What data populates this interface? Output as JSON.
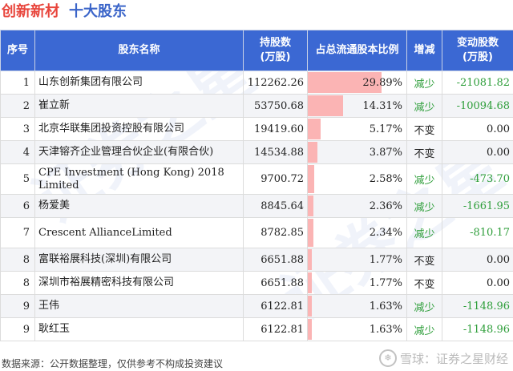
{
  "title": {
    "main": "创新新材",
    "sub": "十大股东"
  },
  "headers": {
    "no": "序号",
    "name": "股东名称",
    "shares": "持股数\n(万股)",
    "ratio": "占总流通股本比例",
    "change": "增减",
    "delta": "变动股数\n(万股)"
  },
  "rows": [
    {
      "no": "1",
      "name": "山东创新集团有限公司",
      "shares": "112262.26",
      "ratio": "29.89%",
      "ratio_value": 29.89,
      "change": "减少",
      "delta": "-21081.82"
    },
    {
      "no": "2",
      "name": "崔立新",
      "shares": "53750.68",
      "ratio": "14.31%",
      "ratio_value": 14.31,
      "change": "减少",
      "delta": "-10094.68"
    },
    {
      "no": "3",
      "name": "北京华联集团投资控股有限公司",
      "shares": "19419.60",
      "ratio": "5.17%",
      "ratio_value": 5.17,
      "change": "不变",
      "delta": "0.00"
    },
    {
      "no": "4",
      "name": "天津镕齐企业管理合伙企业(有限合伙)",
      "shares": "14534.88",
      "ratio": "3.87%",
      "ratio_value": 3.87,
      "change": "不变",
      "delta": "0.00"
    },
    {
      "no": "5",
      "name": "CPE Investment (Hong Kong) 2018 Limited",
      "shares": "9700.72",
      "ratio": "2.58%",
      "ratio_value": 2.58,
      "change": "减少",
      "delta": "-473.70"
    },
    {
      "no": "6",
      "name": "杨爱美",
      "shares": "8845.64",
      "ratio": "2.36%",
      "ratio_value": 2.36,
      "change": "减少",
      "delta": "-1661.95"
    },
    {
      "no": "7",
      "name": "Crescent AllianceLimited",
      "shares": "8782.85",
      "ratio": "2.34%",
      "ratio_value": 2.34,
      "change": "减少",
      "delta": "-810.17"
    },
    {
      "no": "8",
      "name": "富联裕展科技(深圳)有限公司",
      "shares": "6651.88",
      "ratio": "1.77%",
      "ratio_value": 1.77,
      "change": "不变",
      "delta": "0.00"
    },
    {
      "no": "8",
      "name": "深圳市裕展精密科技有限公司",
      "shares": "6651.88",
      "ratio": "1.77%",
      "ratio_value": 1.77,
      "change": "不变",
      "delta": "0.00"
    },
    {
      "no": "9",
      "name": "王伟",
      "shares": "6122.81",
      "ratio": "1.63%",
      "ratio_value": 1.63,
      "change": "减少",
      "delta": "-1148.96"
    },
    {
      "no": "9",
      "name": "耿红玉",
      "shares": "6122.81",
      "ratio": "1.63%",
      "ratio_value": 1.63,
      "change": "减少",
      "delta": "-1148.96"
    }
  ],
  "footer": "数据来源：公开数据整理，仅供参考不构成投资建议",
  "brand": {
    "icon": "snowball-logo-icon",
    "text": "雪球：证券之星财经"
  },
  "watermark": "证券之星",
  "colors": {
    "title_main": "#e8463d",
    "title_sub": "#3b65c9",
    "header_bg": "#3b68d3",
    "bar": "#fbb4b4",
    "decrease": "#2e9e3a"
  }
}
